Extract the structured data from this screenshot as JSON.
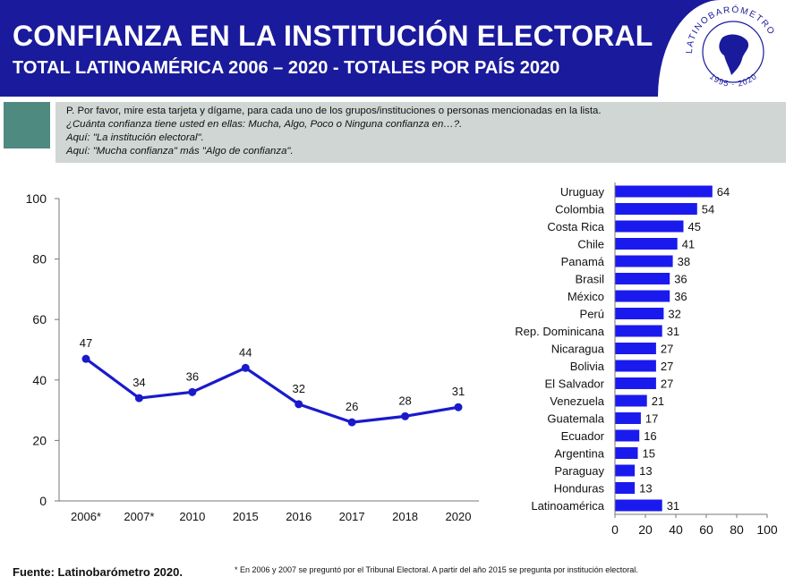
{
  "header": {
    "title": "CONFIANZA EN LA INSTITUCIÓN ELECTORAL",
    "subtitle": "TOTAL LATINOAMÉRICA 2006 – 2020 - TOTALES POR PAÍS 2020",
    "logo_text": "LATINOBARÓMETRO",
    "logo_years": "1995 · 2020"
  },
  "question": {
    "lines": [
      "P. Por favor, mire esta tarjeta y dígame, para cada uno de los grupos/instituciones o personas mencionadas en la lista.",
      "¿Cuánta confianza tiene usted en ellas: Mucha, Algo, Poco o Ninguna confianza en…?.",
      "Aquí: \"La institución electoral\".",
      "Aquí: \"Mucha confianza\" más \"Algo de confianza\"."
    ]
  },
  "footer": {
    "source": "Fuente: Latinobarómetro 2020.",
    "note": "* En 2006 y 2007  se preguntó por el Tribunal Electoral. A partir del año 2015 se pregunta por institución electoral."
  },
  "chart_data": [
    {
      "type": "line",
      "categories": [
        "2006*",
        "2007*",
        "2010",
        "2015",
        "2016",
        "2017",
        "2018",
        "2020"
      ],
      "values": [
        47,
        34,
        36,
        44,
        32,
        26,
        28,
        31
      ],
      "ylim": [
        0,
        100
      ],
      "yticks": [
        0,
        20,
        40,
        60,
        80,
        100
      ],
      "color": "#1a1acc",
      "grid": false
    },
    {
      "type": "bar",
      "orientation": "horizontal",
      "categories": [
        "Uruguay",
        "Colombia",
        "Costa Rica",
        "Chile",
        "Panamá",
        "Brasil",
        "México",
        "Perú",
        "Rep. Dominicana",
        "Nicaragua",
        "Bolivia",
        "El Salvador",
        "Venezuela",
        "Guatemala",
        "Ecuador",
        "Argentina",
        "Paraguay",
        "Honduras",
        "Latinoamérica"
      ],
      "values": [
        64,
        54,
        45,
        41,
        38,
        36,
        36,
        32,
        31,
        27,
        27,
        27,
        21,
        17,
        16,
        15,
        13,
        13,
        31
      ],
      "xlim": [
        0,
        100
      ],
      "xticks": [
        0,
        20,
        40,
        60,
        80,
        100
      ],
      "color": "#1a1aee",
      "grid": false
    }
  ]
}
